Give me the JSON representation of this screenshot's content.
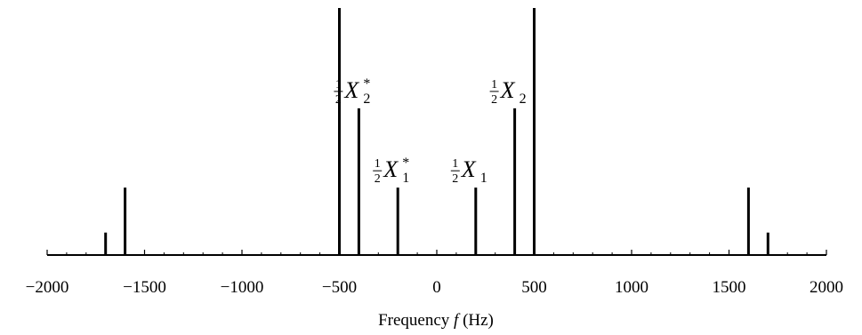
{
  "chart_data": {
    "type": "bar",
    "title": "",
    "xlabel": "Frequency f (Hz)",
    "ylabel": "",
    "xlim": [
      -2000,
      2000
    ],
    "x_ticks": [
      -2000,
      -1500,
      -1000,
      -500,
      0,
      500,
      1000,
      1500,
      2000
    ],
    "x_tick_labels": [
      "−2000",
      "−1500",
      "−1000",
      "−500",
      "0",
      "500",
      "1000",
      "1500",
      "2000"
    ],
    "y_ticks_shown": false,
    "grid": false,
    "series": [
      {
        "x": [
          -1700,
          -1600,
          -500,
          -400,
          -200,
          200,
          400,
          500,
          1600,
          1700
        ],
        "values": [
          0.15,
          0.45,
          1.65,
          0.98,
          0.45,
          0.45,
          0.98,
          1.65,
          0.45,
          0.15
        ]
      }
    ],
    "ylim": [
      0,
      1.65
    ],
    "annotations": [
      {
        "x": -400,
        "text": "½X₂*",
        "main": "X",
        "sub": "2",
        "sup": "*"
      },
      {
        "x": -200,
        "text": "½X₁*",
        "main": "X",
        "sub": "1",
        "sup": "*"
      },
      {
        "x": 200,
        "text": "½X₁",
        "main": "X",
        "sub": "1",
        "sup": ""
      },
      {
        "x": 400,
        "text": "½X₂",
        "main": "X",
        "sub": "2",
        "sup": ""
      }
    ],
    "annotation_fraction": {
      "num": "1",
      "den": "2"
    }
  }
}
